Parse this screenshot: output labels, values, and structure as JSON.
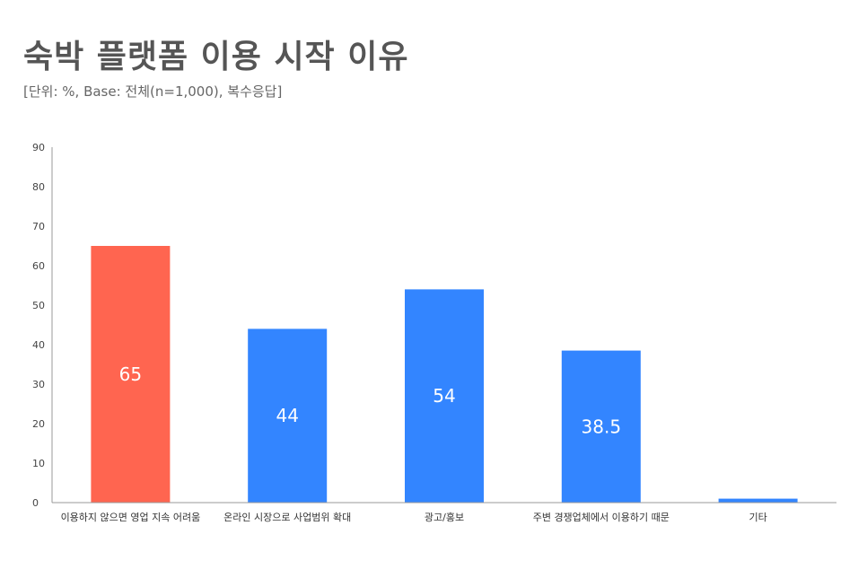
{
  "chart_data": {
    "type": "bar",
    "title": "숙박 플랫폼 이용 시작 이유",
    "subtitle": "[단위: %, Base: 전체(n=1,000), 복수응답]",
    "categories": [
      "이용하지 않으면 영업 지속 어려움",
      "온라인 시장으로 사업범위 확대",
      "광고/홍보",
      "주변 경쟁업체에서 이용하기 때문",
      "기타"
    ],
    "values": [
      65,
      44,
      54,
      38.5,
      1
    ],
    "data_labels": [
      "65",
      "44",
      "54",
      "38.5",
      ""
    ],
    "ylim": [
      0,
      90
    ],
    "yticks": [
      0,
      10,
      20,
      30,
      40,
      50,
      60,
      70,
      80,
      90
    ],
    "colors": [
      "#FF6550",
      "#3385FF",
      "#3385FF",
      "#3385FF",
      "#3385FF"
    ],
    "grid": false,
    "legend": "none"
  }
}
